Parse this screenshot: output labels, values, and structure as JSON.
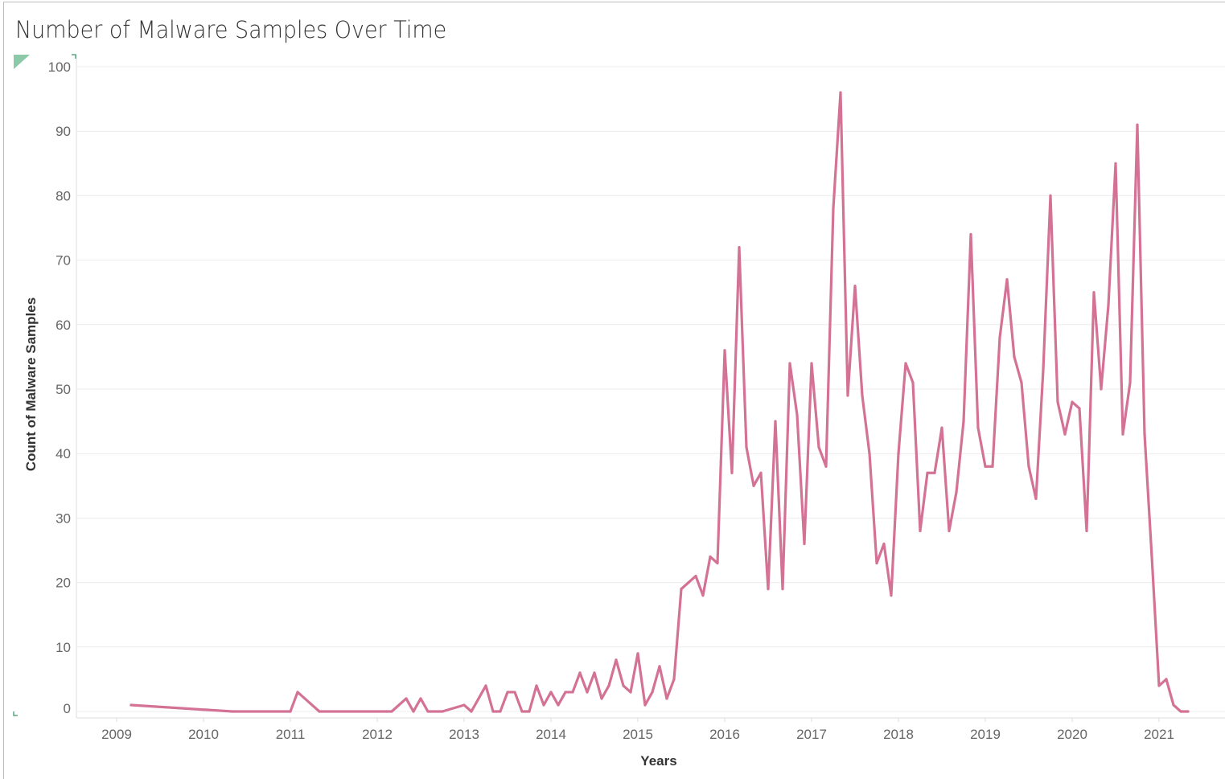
{
  "title": "Number of Malware Samples Over Time",
  "chart_data": {
    "type": "line",
    "title": "Number of Malware Samples Over Time",
    "xlabel": "Years",
    "ylabel": "Count of Malware Samples",
    "ylim": [
      0,
      100
    ],
    "xlim": [
      "2009",
      "2021"
    ],
    "yticks": [
      0,
      10,
      20,
      30,
      40,
      50,
      60,
      70,
      80,
      90,
      100
    ],
    "xticks": [
      "2009",
      "2010",
      "2011",
      "2012",
      "2013",
      "2014",
      "2015",
      "2016",
      "2017",
      "2018",
      "2019",
      "2020",
      "2021"
    ],
    "grid": "horizontal",
    "line_color": "#d37295",
    "points": [
      {
        "date": "2009-03",
        "value": 1
      },
      {
        "date": "2010-05",
        "value": 0
      },
      {
        "date": "2011-01",
        "value": 0
      },
      {
        "date": "2011-02",
        "value": 3
      },
      {
        "date": "2011-05",
        "value": 0
      },
      {
        "date": "2012-03",
        "value": 0
      },
      {
        "date": "2012-05",
        "value": 2
      },
      {
        "date": "2012-06",
        "value": 0
      },
      {
        "date": "2012-07",
        "value": 2
      },
      {
        "date": "2012-08",
        "value": 0
      },
      {
        "date": "2012-10",
        "value": 0
      },
      {
        "date": "2013-01",
        "value": 1
      },
      {
        "date": "2013-02",
        "value": 0
      },
      {
        "date": "2013-04",
        "value": 4
      },
      {
        "date": "2013-05",
        "value": 0
      },
      {
        "date": "2013-06",
        "value": 0
      },
      {
        "date": "2013-07",
        "value": 3
      },
      {
        "date": "2013-08",
        "value": 3
      },
      {
        "date": "2013-09",
        "value": 0
      },
      {
        "date": "2013-10",
        "value": 0
      },
      {
        "date": "2013-11",
        "value": 4
      },
      {
        "date": "2013-12",
        "value": 1
      },
      {
        "date": "2014-01",
        "value": 3
      },
      {
        "date": "2014-02",
        "value": 1
      },
      {
        "date": "2014-03",
        "value": 3
      },
      {
        "date": "2014-04",
        "value": 3
      },
      {
        "date": "2014-05",
        "value": 6
      },
      {
        "date": "2014-06",
        "value": 3
      },
      {
        "date": "2014-07",
        "value": 6
      },
      {
        "date": "2014-08",
        "value": 2
      },
      {
        "date": "2014-09",
        "value": 4
      },
      {
        "date": "2014-10",
        "value": 8
      },
      {
        "date": "2014-11",
        "value": 4
      },
      {
        "date": "2014-12",
        "value": 3
      },
      {
        "date": "2015-01",
        "value": 9
      },
      {
        "date": "2015-02",
        "value": 1
      },
      {
        "date": "2015-03",
        "value": 3
      },
      {
        "date": "2015-04",
        "value": 7
      },
      {
        "date": "2015-05",
        "value": 2
      },
      {
        "date": "2015-06",
        "value": 5
      },
      {
        "date": "2015-07",
        "value": 19
      },
      {
        "date": "2015-08",
        "value": 20
      },
      {
        "date": "2015-09",
        "value": 21
      },
      {
        "date": "2015-10",
        "value": 18
      },
      {
        "date": "2015-11",
        "value": 24
      },
      {
        "date": "2015-12",
        "value": 23
      },
      {
        "date": "2016-01",
        "value": 56
      },
      {
        "date": "2016-02",
        "value": 37
      },
      {
        "date": "2016-03",
        "value": 72
      },
      {
        "date": "2016-04",
        "value": 41
      },
      {
        "date": "2016-05",
        "value": 35
      },
      {
        "date": "2016-06",
        "value": 37
      },
      {
        "date": "2016-07",
        "value": 19
      },
      {
        "date": "2016-08",
        "value": 45
      },
      {
        "date": "2016-09",
        "value": 19
      },
      {
        "date": "2016-10",
        "value": 54
      },
      {
        "date": "2016-11",
        "value": 46
      },
      {
        "date": "2016-12",
        "value": 26
      },
      {
        "date": "2017-01",
        "value": 54
      },
      {
        "date": "2017-02",
        "value": 41
      },
      {
        "date": "2017-03",
        "value": 38
      },
      {
        "date": "2017-04",
        "value": 78
      },
      {
        "date": "2017-05",
        "value": 96
      },
      {
        "date": "2017-06",
        "value": 49
      },
      {
        "date": "2017-07",
        "value": 66
      },
      {
        "date": "2017-08",
        "value": 49
      },
      {
        "date": "2017-09",
        "value": 40
      },
      {
        "date": "2017-10",
        "value": 23
      },
      {
        "date": "2017-11",
        "value": 26
      },
      {
        "date": "2017-12",
        "value": 18
      },
      {
        "date": "2018-01",
        "value": 40
      },
      {
        "date": "2018-02",
        "value": 54
      },
      {
        "date": "2018-03",
        "value": 51
      },
      {
        "date": "2018-04",
        "value": 28
      },
      {
        "date": "2018-05",
        "value": 37
      },
      {
        "date": "2018-06",
        "value": 37
      },
      {
        "date": "2018-07",
        "value": 44
      },
      {
        "date": "2018-08",
        "value": 28
      },
      {
        "date": "2018-09",
        "value": 34
      },
      {
        "date": "2018-10",
        "value": 45
      },
      {
        "date": "2018-11",
        "value": 74
      },
      {
        "date": "2018-12",
        "value": 44
      },
      {
        "date": "2019-01",
        "value": 38
      },
      {
        "date": "2019-02",
        "value": 38
      },
      {
        "date": "2019-03",
        "value": 58
      },
      {
        "date": "2019-04",
        "value": 67
      },
      {
        "date": "2019-05",
        "value": 55
      },
      {
        "date": "2019-06",
        "value": 51
      },
      {
        "date": "2019-07",
        "value": 38
      },
      {
        "date": "2019-08",
        "value": 33
      },
      {
        "date": "2019-09",
        "value": 53
      },
      {
        "date": "2019-10",
        "value": 80
      },
      {
        "date": "2019-11",
        "value": 48
      },
      {
        "date": "2019-12",
        "value": 43
      },
      {
        "date": "2020-01",
        "value": 48
      },
      {
        "date": "2020-02",
        "value": 47
      },
      {
        "date": "2020-03",
        "value": 28
      },
      {
        "date": "2020-04",
        "value": 65
      },
      {
        "date": "2020-05",
        "value": 50
      },
      {
        "date": "2020-06",
        "value": 63
      },
      {
        "date": "2020-07",
        "value": 85
      },
      {
        "date": "2020-08",
        "value": 43
      },
      {
        "date": "2020-09",
        "value": 51
      },
      {
        "date": "2020-10",
        "value": 91
      },
      {
        "date": "2020-11",
        "value": 43
      },
      {
        "date": "2020-12",
        "value": 24
      },
      {
        "date": "2021-01",
        "value": 4
      },
      {
        "date": "2021-02",
        "value": 5
      },
      {
        "date": "2021-03",
        "value": 1
      },
      {
        "date": "2021-04",
        "value": 0
      },
      {
        "date": "2021-05",
        "value": 0
      }
    ]
  }
}
